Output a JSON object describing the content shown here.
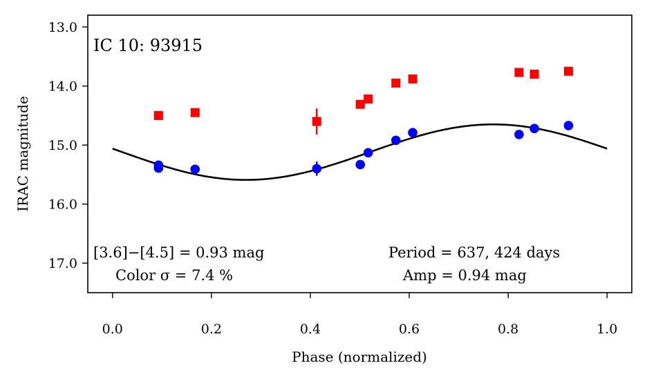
{
  "chart_data": {
    "type": "scatter",
    "title": "IC 10:  93915",
    "xlabel": "Phase (normalized)",
    "ylabel": "IRAC magnitude",
    "xlim": [
      -0.05,
      1.05
    ],
    "ylim": [
      17.5,
      12.8
    ],
    "y_inverted": true,
    "grid": false,
    "x_ticks": [
      0.0,
      0.2,
      0.4,
      0.6,
      0.8,
      1.0
    ],
    "x_tick_labels": [
      "0.0",
      "0.2",
      "0.4",
      "0.6",
      "0.8",
      "1.0"
    ],
    "y_ticks": [
      13.0,
      14.0,
      15.0,
      16.0,
      17.0
    ],
    "y_tick_labels": [
      "13.0",
      "14.0",
      "15.0",
      "16.0",
      "17.0"
    ],
    "series": [
      {
        "marker": "square",
        "color": "#ff0000",
        "points": [
          {
            "x": 0.093,
            "y": 14.5,
            "err": 0.04
          },
          {
            "x": 0.167,
            "y": 14.45,
            "err": 0.04
          },
          {
            "x": 0.413,
            "y": 14.6,
            "err": 0.22
          },
          {
            "x": 0.501,
            "y": 14.31,
            "err": 0.04
          },
          {
            "x": 0.517,
            "y": 14.22,
            "err": 0.04
          },
          {
            "x": 0.573,
            "y": 13.95,
            "err": 0.04
          },
          {
            "x": 0.607,
            "y": 13.88,
            "err": 0.07
          },
          {
            "x": 0.822,
            "y": 13.77,
            "err": 0.04
          },
          {
            "x": 0.853,
            "y": 13.8,
            "err": 0.04
          },
          {
            "x": 0.922,
            "y": 13.75,
            "err": 0.04
          }
        ]
      },
      {
        "marker": "circle",
        "color": "#0000ff",
        "points": [
          {
            "x": 0.093,
            "y": 15.34,
            "err": 0.04
          },
          {
            "x": 0.093,
            "y": 15.39,
            "err": 0.04
          },
          {
            "x": 0.167,
            "y": 15.41,
            "err": 0.04
          },
          {
            "x": 0.413,
            "y": 15.4,
            "err": 0.12
          },
          {
            "x": 0.501,
            "y": 15.33,
            "err": 0.04
          },
          {
            "x": 0.517,
            "y": 15.13,
            "err": 0.04
          },
          {
            "x": 0.573,
            "y": 14.92,
            "err": 0.04
          },
          {
            "x": 0.607,
            "y": 14.79,
            "err": 0.04
          },
          {
            "x": 0.822,
            "y": 14.82,
            "err": 0.06
          },
          {
            "x": 0.853,
            "y": 14.72,
            "err": 0.04
          },
          {
            "x": 0.922,
            "y": 14.67,
            "err": 0.04
          }
        ]
      }
    ],
    "fit_curve": {
      "type": "sinusoid",
      "color": "#000000",
      "mean": 15.12,
      "amplitude": 0.47,
      "phase_of_max_brightness": 0.77,
      "x_range": [
        0.0,
        1.0
      ]
    },
    "annotations": {
      "color_line1": "[3.6]−[4.5] = 0.93 mag",
      "color_line2": "Color σ = 7.4 %",
      "period_line": "Period = 637, 424 days",
      "amp_line": "Amp = 0.94 mag"
    }
  }
}
